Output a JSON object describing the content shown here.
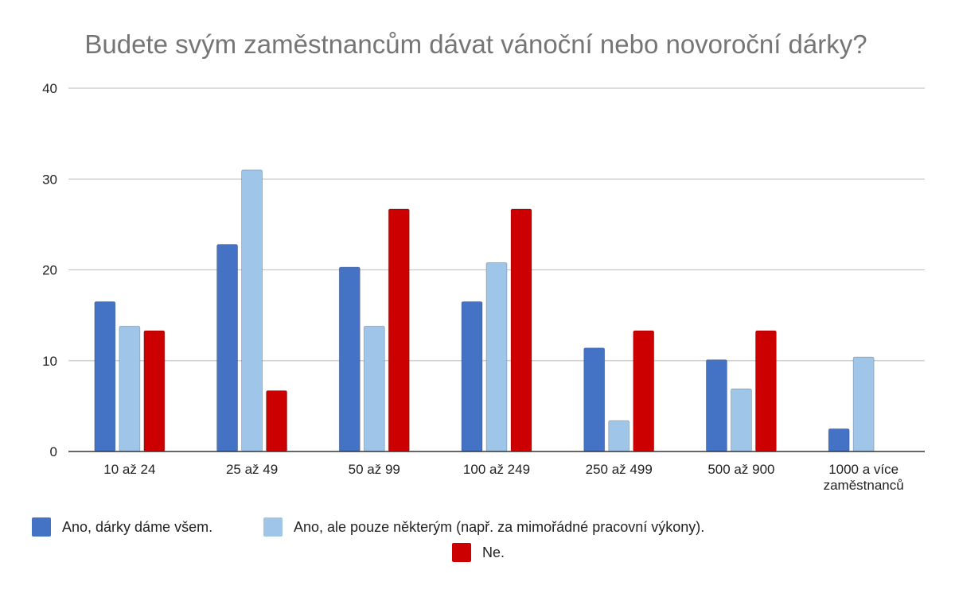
{
  "chart_data": {
    "type": "bar",
    "title": "Budete svým zaměstnancům dávat vánoční nebo novoroční dárky?",
    "xlabel": "",
    "ylabel": "",
    "ylim": [
      0,
      40
    ],
    "yticks": [
      0,
      10,
      20,
      30,
      40
    ],
    "grid": true,
    "legend_position": "bottom",
    "categories": [
      [
        "10 až 24"
      ],
      [
        "25 až 49"
      ],
      [
        "50 až 99"
      ],
      [
        "100 až 249"
      ],
      [
        "250 až 499"
      ],
      [
        "500 až 900"
      ],
      [
        "1000 a více",
        "zaměstnanců"
      ]
    ],
    "series": [
      {
        "name": "Ano, dárky dáme všem.",
        "color": "#4472c4",
        "values": [
          16.5,
          22.8,
          20.3,
          16.5,
          11.4,
          10.1,
          2.5
        ]
      },
      {
        "name": "Ano, ale pouze některým (např. za mimořádné pracovní výkony).",
        "color": "#9fc5e8",
        "values": [
          13.8,
          31.0,
          13.8,
          20.8,
          3.4,
          6.9,
          10.4
        ]
      },
      {
        "name": "Ne.",
        "color": "#cc0000",
        "values": [
          13.3,
          6.7,
          26.7,
          26.7,
          13.3,
          13.3,
          0
        ]
      }
    ]
  }
}
